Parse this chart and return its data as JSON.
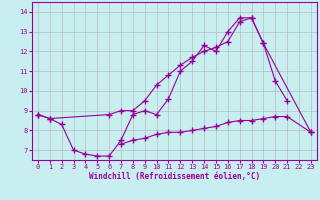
{
  "xlabel": "Windchill (Refroidissement éolien,°C)",
  "bg_color": "#c8eef0",
  "line_color": "#990099",
  "grid_color": "#b0b0b0",
  "xlim": [
    -0.5,
    23.5
  ],
  "ylim": [
    6.5,
    14.5
  ],
  "yticks": [
    7,
    8,
    9,
    10,
    11,
    12,
    13,
    14
  ],
  "xticks": [
    0,
    1,
    2,
    3,
    4,
    5,
    6,
    7,
    8,
    9,
    10,
    11,
    12,
    13,
    14,
    15,
    16,
    17,
    18,
    19,
    20,
    21,
    22,
    23
  ],
  "line1_x": [
    0,
    1,
    2,
    3,
    4,
    5,
    6,
    7,
    8,
    9,
    10,
    11,
    12,
    13,
    14,
    15,
    16,
    17,
    18,
    19,
    20,
    21
  ],
  "line1_y": [
    8.8,
    8.6,
    8.3,
    7.0,
    6.8,
    6.7,
    6.7,
    7.5,
    8.8,
    9.0,
    8.8,
    9.6,
    11.0,
    11.5,
    12.3,
    12.0,
    13.0,
    13.7,
    13.7,
    12.4,
    10.5,
    9.5
  ],
  "line2_x": [
    0,
    1,
    6,
    7,
    8,
    9,
    10,
    11,
    12,
    13,
    14,
    15,
    16,
    17,
    18,
    19,
    23
  ],
  "line2_y": [
    8.8,
    8.6,
    8.8,
    9.0,
    9.0,
    9.5,
    10.3,
    10.8,
    11.3,
    11.7,
    12.0,
    12.2,
    12.5,
    13.5,
    13.7,
    12.4,
    7.9
  ],
  "line3_x": [
    7,
    8,
    9,
    10,
    11,
    12,
    13,
    14,
    15,
    16,
    17,
    18,
    19,
    20,
    21,
    23
  ],
  "line3_y": [
    7.3,
    7.5,
    7.6,
    7.8,
    7.9,
    7.9,
    8.0,
    8.1,
    8.2,
    8.4,
    8.5,
    8.5,
    8.6,
    8.7,
    8.7,
    7.9
  ]
}
